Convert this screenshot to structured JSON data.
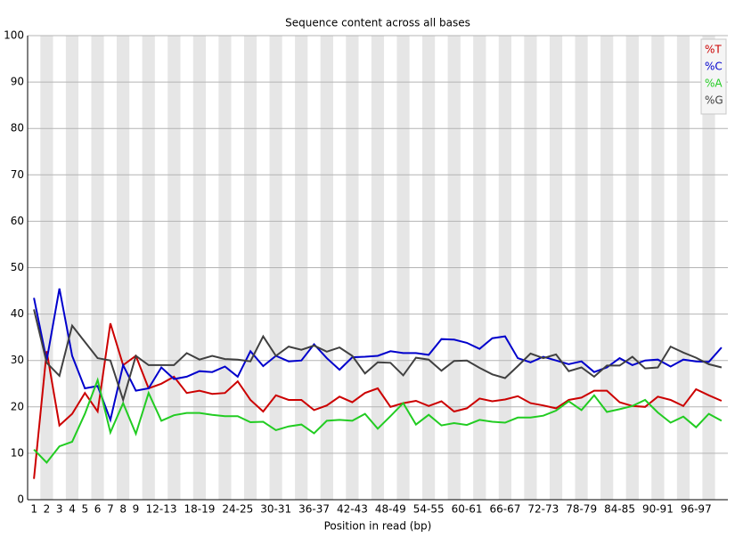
{
  "chart_data": {
    "type": "line",
    "title": "Sequence content across all bases",
    "x_label": "Position in read (bp)",
    "categories": [
      "1",
      "2",
      "3",
      "4",
      "5",
      "6",
      "7",
      "8",
      "9",
      null,
      "12-13",
      null,
      null,
      "18-19",
      null,
      null,
      "24-25",
      null,
      null,
      "30-31",
      null,
      null,
      "36-37",
      null,
      null,
      "42-43",
      null,
      null,
      "48-49",
      null,
      null,
      "54-55",
      null,
      null,
      "60-61",
      null,
      null,
      "66-67",
      null,
      null,
      "72-73",
      null,
      null,
      "78-79",
      null,
      null,
      "84-85",
      null,
      null,
      "90-91",
      null,
      null,
      "96-97",
      null,
      null
    ],
    "series": [
      {
        "name": "%T",
        "color": "#cc0000",
        "values": [
          4.5,
          32,
          16,
          18.5,
          23,
          19,
          38,
          29,
          31,
          24,
          25,
          26.5,
          23,
          23.5,
          22.8,
          23,
          25.5,
          21.5,
          19,
          22.5,
          21.5,
          21.5,
          19.3,
          20.3,
          22.2,
          21,
          23,
          24,
          20,
          20.8,
          21.3,
          20.2,
          21.2,
          19,
          19.7,
          21.8,
          21.2,
          21.6,
          22.3,
          20.8,
          20.3,
          19.7,
          21.5,
          22,
          23.5,
          23.5,
          21,
          20.2,
          20,
          22.2,
          21.5,
          20.2,
          23.8,
          22.5,
          21.3
        ]
      },
      {
        "name": "%C",
        "color": "#0000cc",
        "values": [
          43.5,
          30,
          45.5,
          31,
          24,
          24.5,
          17.2,
          29,
          23.5,
          24,
          28.5,
          26,
          26.5,
          27.7,
          27.5,
          28.7,
          26.5,
          32,
          28.8,
          31,
          29.8,
          30,
          33.5,
          30.5,
          28,
          30.7,
          30.8,
          31,
          32,
          31.6,
          31.6,
          31.2,
          34.6,
          34.5,
          33.8,
          32.5,
          34.8,
          35.2,
          30.5,
          29.6,
          30.8,
          30,
          29.2,
          29.8,
          27.5,
          28.5,
          30.5,
          29,
          30,
          30.2,
          28.7,
          30.2,
          29.8,
          29.7,
          32.8
        ]
      },
      {
        "name": "%A",
        "color": "#22cc22",
        "values": [
          10.8,
          8,
          11.5,
          12.5,
          18.5,
          25.8,
          14.5,
          20.8,
          14.2,
          23,
          17,
          18.2,
          18.7,
          18.7,
          18.3,
          18,
          18,
          16.7,
          16.8,
          15,
          15.8,
          16.2,
          14.3,
          17,
          17.2,
          17,
          18.5,
          15.3,
          18,
          20.8,
          16.2,
          18.3,
          16,
          16.5,
          16.1,
          17.2,
          16.8,
          16.6,
          17.7,
          17.7,
          18.1,
          19.2,
          21.2,
          19.3,
          22.5,
          18.9,
          19.5,
          20.2,
          21.5,
          18.8,
          16.6,
          17.9,
          15.6,
          18.5,
          17
        ]
      },
      {
        "name": "%G",
        "color": "#404040",
        "values": [
          41,
          29.5,
          26.7,
          37.5,
          34,
          30.5,
          30,
          21.5,
          31,
          29,
          29,
          29,
          31.6,
          30.2,
          31,
          30.3,
          30.2,
          29.8,
          35.2,
          31,
          33,
          32.3,
          33.2,
          31.9,
          32.8,
          31,
          27.2,
          29.6,
          29.5,
          26.8,
          30.6,
          30.2,
          27.8,
          29.9,
          30,
          28.4,
          27,
          26.2,
          28.8,
          31.5,
          30.5,
          31.3,
          27.7,
          28.5,
          26.5,
          28.9,
          28.9,
          30.8,
          28.3,
          28.5,
          33,
          31.7,
          30.6,
          29.2,
          28.5
        ]
      }
    ],
    "ylim": [
      0,
      100
    ],
    "yticks": [
      0,
      10,
      20,
      30,
      40,
      50,
      60,
      70,
      80,
      90,
      100
    ],
    "grid": true,
    "legend": "top-right"
  }
}
